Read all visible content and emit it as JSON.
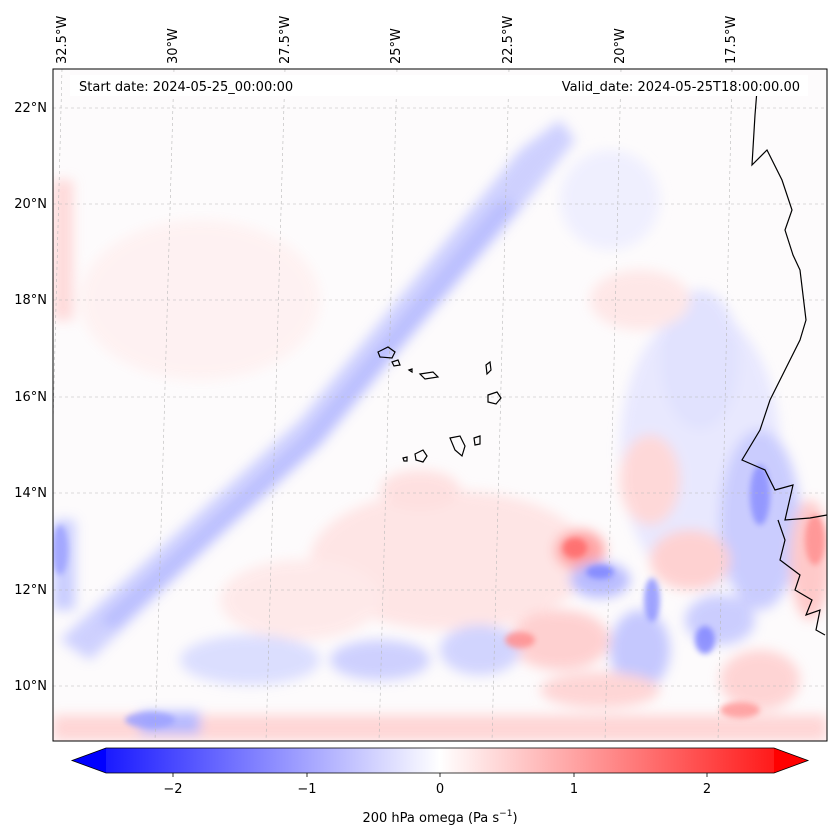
{
  "header": {
    "start_date": "Start date: 2024-05-25_00:00:00",
    "valid_date": "Valid_date: 2024-05-25T18:00:00.00"
  },
  "map": {
    "lon_labels": [
      "32.5°W",
      "30°W",
      "27.5°W",
      "25°W",
      "22.5°W",
      "20°W",
      "17.5°W"
    ],
    "lat_labels": [
      "22°N",
      "20°N",
      "18°N",
      "16°N",
      "14°N",
      "12°N",
      "10°N"
    ],
    "gridlines": true,
    "field": "200 hPa vertical velocity (omega)"
  },
  "colorbar": {
    "ticks": [
      "−2",
      "−1",
      "0",
      "1",
      "2"
    ],
    "label": "200 hPa omega (Pa s",
    "label_unit_sup": "−1",
    "label_close": ")",
    "min_color": "#0000ff",
    "mid_color": "#ffffff",
    "max_color": "#ff0000",
    "extend": "both"
  },
  "colors": {
    "positive": "#ff0000",
    "negative": "#0000ff",
    "coast": "#000000",
    "grid": "#b0b0b0"
  }
}
